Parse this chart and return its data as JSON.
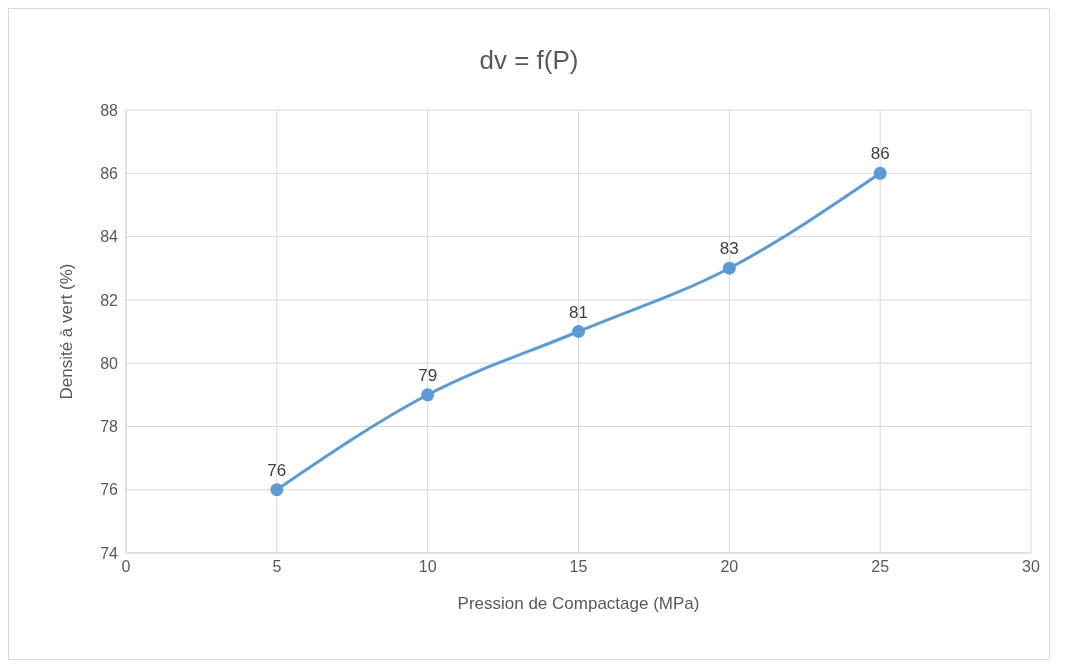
{
  "chart_data": {
    "type": "line",
    "title": "dv = f(P)",
    "xlabel": "Pression de Compactage (MPa)",
    "ylabel": "Densité à vert (%)",
    "x": [
      5,
      10,
      15,
      20,
      25
    ],
    "series": [
      {
        "color": "#5b9bd5",
        "values": [
          76,
          79,
          81,
          83,
          86
        ]
      }
    ],
    "xlim": [
      0,
      30
    ],
    "xticks": [
      0,
      5,
      10,
      15,
      20,
      25,
      30
    ],
    "ylim": [
      74,
      88
    ],
    "yticks": [
      74,
      76,
      78,
      80,
      82,
      84,
      86,
      88
    ],
    "grid": true,
    "legend": false,
    "marker": "circle",
    "line_style": "solid",
    "data_labels": true
  }
}
